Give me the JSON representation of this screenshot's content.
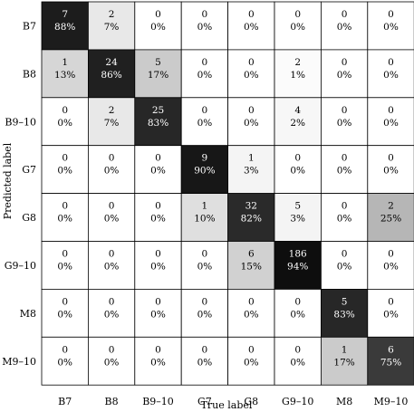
{
  "chart_data": {
    "type": "heatmap",
    "xlabel": "True label",
    "ylabel": "Predicted label",
    "x_categories": [
      "B7",
      "B8",
      "B9–10",
      "G7",
      "G8",
      "G9–10",
      "M8",
      "M9–10"
    ],
    "y_categories": [
      "B7",
      "B8",
      "B9–10",
      "G7",
      "G8",
      "G9–10",
      "M8",
      "M9–10"
    ],
    "counts": [
      [
        7,
        2,
        0,
        0,
        0,
        0,
        0,
        0
      ],
      [
        1,
        24,
        5,
        0,
        0,
        2,
        0,
        0
      ],
      [
        0,
        2,
        25,
        0,
        0,
        4,
        0,
        0
      ],
      [
        0,
        0,
        0,
        9,
        1,
        0,
        0,
        0
      ],
      [
        0,
        0,
        0,
        1,
        32,
        5,
        0,
        2
      ],
      [
        0,
        0,
        0,
        0,
        6,
        186,
        0,
        0
      ],
      [
        0,
        0,
        0,
        0,
        0,
        0,
        5,
        0
      ],
      [
        0,
        0,
        0,
        0,
        0,
        0,
        1,
        6
      ]
    ],
    "percents": [
      [
        "88%",
        "7%",
        "0%",
        "0%",
        "0%",
        "0%",
        "0%",
        "0%"
      ],
      [
        "13%",
        "86%",
        "17%",
        "0%",
        "0%",
        "1%",
        "0%",
        "0%"
      ],
      [
        "0%",
        "7%",
        "83%",
        "0%",
        "0%",
        "2%",
        "0%",
        "0%"
      ],
      [
        "0%",
        "0%",
        "0%",
        "90%",
        "3%",
        "0%",
        "0%",
        "0%"
      ],
      [
        "0%",
        "0%",
        "0%",
        "10%",
        "82%",
        "3%",
        "0%",
        "25%"
      ],
      [
        "0%",
        "0%",
        "0%",
        "0%",
        "15%",
        "94%",
        "0%",
        "0%"
      ],
      [
        "0%",
        "0%",
        "0%",
        "0%",
        "0%",
        "0%",
        "83%",
        "0%"
      ],
      [
        "0%",
        "0%",
        "0%",
        "0%",
        "0%",
        "0%",
        "17%",
        "75%"
      ]
    ],
    "colormap": {
      "low": "#ffffff",
      "high": "#000000"
    },
    "cell_text_color_dark": "#000000",
    "cell_text_color_light": "#ffffff",
    "grid": true
  }
}
